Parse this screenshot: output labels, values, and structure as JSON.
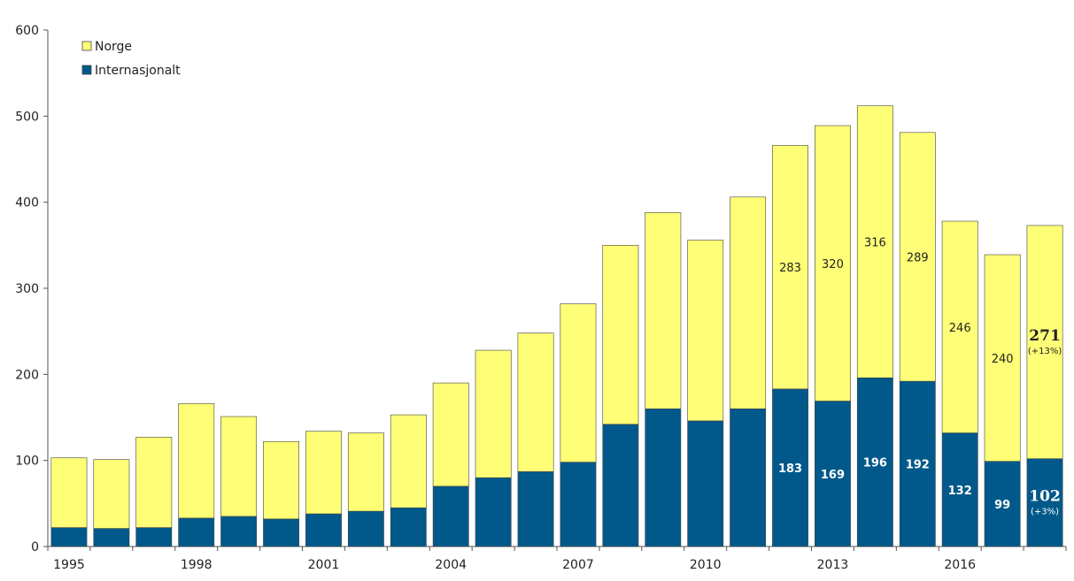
{
  "chart_data": {
    "type": "bar",
    "stacked": true,
    "categories": [
      "1995",
      "1996",
      "1997",
      "1998",
      "1999",
      "2000",
      "2001",
      "2002",
      "2003",
      "2004",
      "2005",
      "2006",
      "2007",
      "2008",
      "2009",
      "2010",
      "2011",
      "2012",
      "2013",
      "2014",
      "2015",
      "2016",
      "2017",
      "2018"
    ],
    "x_tick_labels": [
      "1995",
      "1998",
      "2001",
      "2004",
      "2007",
      "2010",
      "2013",
      "2016"
    ],
    "series": [
      {
        "name": "Internasjonalt",
        "color": "#00598a",
        "values": [
          22,
          21,
          22,
          33,
          35,
          32,
          38,
          41,
          45,
          70,
          80,
          87,
          98,
          142,
          160,
          146,
          160,
          183,
          169,
          196,
          192,
          132,
          99,
          102
        ]
      },
      {
        "name": "Norge",
        "color": "#ffff77",
        "values": [
          81,
          80,
          105,
          133,
          116,
          90,
          96,
          91,
          108,
          120,
          148,
          161,
          184,
          208,
          228,
          210,
          246,
          283,
          320,
          316,
          289,
          246,
          240,
          271
        ]
      }
    ],
    "data_labels": {
      "Internasjonalt": {
        "2012": "183",
        "2013": "169",
        "2014": "196",
        "2015": "192",
        "2016": "132",
        "2017": "99",
        "2018": "102"
      },
      "Norge": {
        "2012": "283",
        "2013": "320",
        "2014": "316",
        "2015": "289",
        "2016": "246",
        "2017": "240",
        "2018": "271"
      }
    },
    "annotations": {
      "Internasjonalt_2018": "(+3%)",
      "Norge_2018": "(+13%)"
    },
    "ylim": [
      0,
      600
    ],
    "y_ticks": [
      0,
      100,
      200,
      300,
      400,
      500,
      600
    ],
    "grid": false,
    "legend": {
      "placement": "top-left",
      "entries": [
        {
          "name": "Norge",
          "color": "#ffff77"
        },
        {
          "name": "Internasjonalt",
          "color": "#00598a"
        }
      ]
    }
  }
}
